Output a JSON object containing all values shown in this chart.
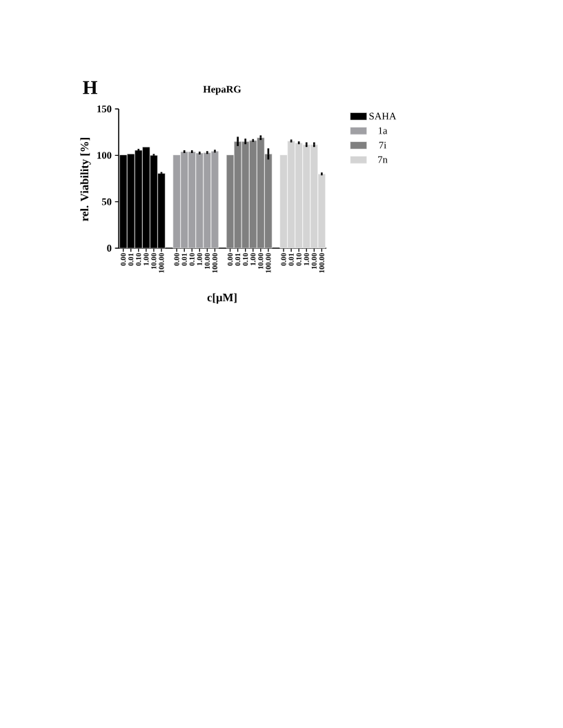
{
  "chart_data": {
    "type": "bar",
    "title": "HepaRG",
    "xlabel": "c[µM]",
    "ylabel": "rel. Viability [%]",
    "annotations": [
      "H"
    ],
    "categories": [
      "0.00",
      "0.01",
      "0.10",
      "1.00",
      "10.00",
      "100.00",
      null,
      "0.00",
      "0.01",
      "0.10",
      "1.00",
      "10.00",
      "100.00",
      null,
      "0.00",
      "0.01",
      "0.10",
      "1.00",
      "10.00",
      "100.00",
      null,
      "0.00",
      "0.01",
      "0.10",
      "1.00",
      "10.00",
      "100.00"
    ],
    "series": [
      {
        "name": "SAHA",
        "color": "#000000",
        "values": [
          100.5,
          101.5,
          105.5,
          109,
          100,
          80.5,
          null,
          null,
          null,
          null,
          null,
          null,
          null,
          null,
          null,
          null,
          null,
          null,
          null,
          null,
          null,
          null,
          null,
          null,
          null,
          null,
          null
        ],
        "errors": [
          null,
          null,
          1.5,
          null,
          1.5,
          1.5,
          null,
          null,
          null,
          null,
          null,
          null,
          null,
          null,
          null,
          null,
          null,
          null,
          null,
          null,
          null,
          null,
          null,
          null,
          null,
          null,
          null
        ]
      },
      {
        "name": "1a",
        "color": "#a0a0a4",
        "values": [
          null,
          null,
          null,
          null,
          null,
          null,
          null,
          100.5,
          104,
          104,
          102.5,
          103,
          104.5,
          null,
          null,
          null,
          null,
          null,
          null,
          null,
          null,
          null,
          null,
          null,
          null,
          null,
          null
        ],
        "errors": [
          null,
          null,
          null,
          null,
          null,
          null,
          null,
          null,
          1.5,
          1.5,
          1.5,
          1.5,
          1.5,
          null,
          null,
          null,
          null,
          null,
          null,
          null,
          null,
          null,
          null,
          null,
          null,
          null,
          null
        ]
      },
      {
        "name": "7i",
        "color": "#808080",
        "values": [
          null,
          null,
          null,
          null,
          null,
          null,
          null,
          null,
          null,
          null,
          null,
          null,
          null,
          null,
          100.5,
          115,
          115,
          116,
          119,
          101.5,
          null,
          null,
          null,
          null,
          null,
          null,
          null
        ],
        "errors": [
          null,
          null,
          null,
          null,
          null,
          null,
          null,
          null,
          null,
          null,
          null,
          null,
          null,
          null,
          null,
          5,
          3,
          1.5,
          2.5,
          6,
          null,
          null,
          null,
          null,
          null,
          null,
          null
        ]
      },
      {
        "name": "7n",
        "color": "#d4d4d4",
        "values": [
          null,
          null,
          null,
          null,
          null,
          null,
          null,
          null,
          null,
          null,
          null,
          null,
          null,
          null,
          null,
          null,
          null,
          null,
          null,
          null,
          null,
          100.5,
          115.5,
          113.5,
          111.5,
          111.5,
          80
        ],
        "errors": [
          null,
          null,
          null,
          null,
          null,
          null,
          null,
          null,
          null,
          null,
          null,
          null,
          null,
          null,
          null,
          null,
          null,
          null,
          null,
          null,
          null,
          null,
          1.5,
          1.5,
          2.5,
          2.5,
          1.5
        ]
      }
    ],
    "ylim": [
      0,
      150
    ],
    "yticks": [
      0,
      50,
      100,
      150
    ],
    "legend": "right"
  }
}
